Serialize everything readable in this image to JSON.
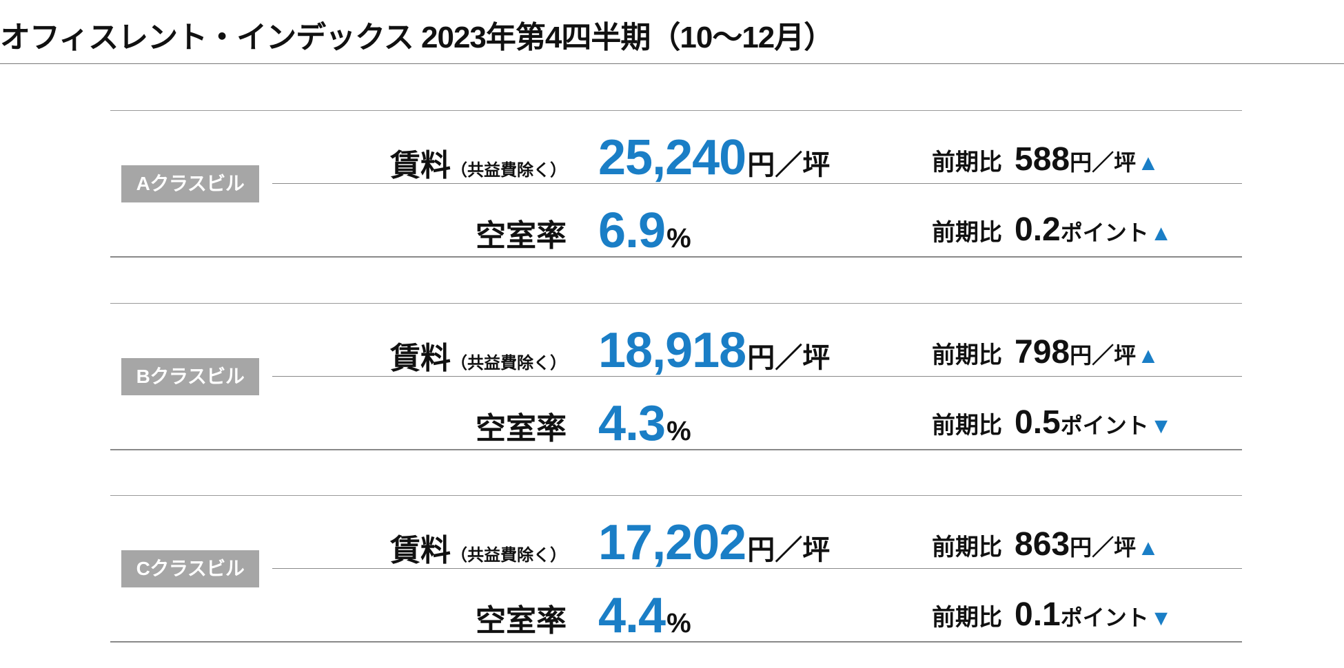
{
  "title": "オフィスレント・インデックス 2023年第4四半期（10～12月）",
  "labels": {
    "rent_main": "賃料",
    "rent_sub": "（共益費除く）",
    "vacancy": "空室率",
    "change_prefix": "前期比"
  },
  "units": {
    "rent": "円／坪",
    "vacancy": "%",
    "point": "ポイント"
  },
  "colors": {
    "accent": "#1a7ec6",
    "badge": "#a6a6a6"
  },
  "sections": [
    {
      "badge": "Aクラスビル",
      "rent": "25,240",
      "rent_change": "588",
      "rent_arrow": "▲",
      "vacancy": "6.9",
      "vacancy_change": "0.2",
      "vacancy_arrow": "▲"
    },
    {
      "badge": "Bクラスビル",
      "rent": "18,918",
      "rent_change": "798",
      "rent_arrow": "▲",
      "vacancy": "4.3",
      "vacancy_change": "0.5",
      "vacancy_arrow": "▼"
    },
    {
      "badge": "Cクラスビル",
      "rent": "17,202",
      "rent_change": "863",
      "rent_arrow": "▲",
      "vacancy": "4.4",
      "vacancy_change": "0.1",
      "vacancy_arrow": "▼"
    }
  ]
}
